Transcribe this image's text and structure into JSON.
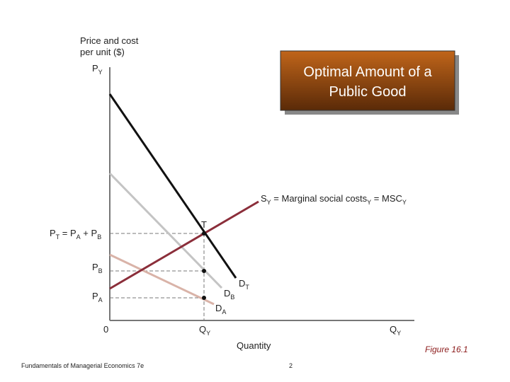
{
  "title": [
    "Optimal Amount of a",
    "Public Good"
  ],
  "y_axis_label": [
    "Price and cost",
    "per unit ($)"
  ],
  "x_axis_label": "Quantity",
  "labels": {
    "p_y": [
      {
        "text": "P",
        "subscript": "Y"
      }
    ],
    "p_t": [
      {
        "text": "P",
        "subscript": "T"
      },
      {
        "text": " = P",
        "subscript": "A"
      },
      {
        "text": " + P",
        "subscript": "B"
      }
    ],
    "p_b": [
      {
        "text": "P",
        "subscript": "B"
      }
    ],
    "p_a": [
      {
        "text": "P",
        "subscript": "A"
      }
    ],
    "origin": [
      {
        "text": "0"
      }
    ],
    "q_y": [
      {
        "text": "Q",
        "subscript": "Y"
      }
    ],
    "q_y_axis": [
      {
        "text": "Q",
        "subscript": "Y"
      }
    ],
    "point_t": [
      {
        "text": "T"
      }
    ],
    "d_t": [
      {
        "text": "D",
        "subscript": "T"
      }
    ],
    "d_b": [
      {
        "text": "D",
        "subscript": "B"
      }
    ],
    "d_a": [
      {
        "text": "D",
        "subscript": "A"
      }
    ],
    "supply": [
      {
        "text": "S",
        "subscript": "Y"
      },
      {
        "text": " = Marginal social costs",
        "subscript": "Y"
      },
      {
        "text": " = MSC",
        "subscript": "Y"
      }
    ]
  },
  "figure_label": "Figure 16.1",
  "footer": {
    "book": "Fundamentals of Managerial Economics 7e",
    "page": "2"
  }
}
